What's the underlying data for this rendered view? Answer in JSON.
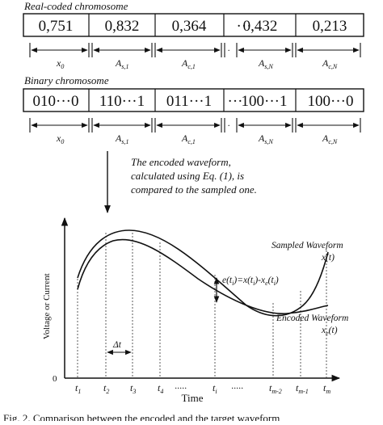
{
  "real_chromosome": {
    "title": "Real-coded chromosome",
    "cells": [
      "0,751",
      "0,832",
      "0,364",
      "···",
      "0,432",
      "0,213"
    ]
  },
  "binary_chromosome": {
    "title": "Binary chromosome",
    "cells": [
      "010···0",
      "110···1",
      "011···1",
      "···",
      "100···1",
      "100···0"
    ]
  },
  "segments": [
    {
      "main": "x",
      "sub": "0"
    },
    {
      "main": "A",
      "sub": "s,1"
    },
    {
      "main": "A",
      "sub": "c,1"
    },
    {
      "main": "A",
      "sub": "s,N"
    },
    {
      "main": "A",
      "sub": "c,N"
    }
  ],
  "note": {
    "line1": "The encoded waveform,",
    "line2": "calculated using Eq. (1), is",
    "line3": "compared to the sampled one."
  },
  "plot": {
    "ylabel": "Voltage or Current",
    "xlabel": "Time",
    "origin": "0",
    "sampled_label": "Sampled Waveform",
    "sampled_symbol": "x(t)",
    "encoded_label": "Encoded Waveform",
    "encoded_symbol": "x",
    "encoded_symbol_sub": "e",
    "encoded_symbol_tail": "(t)",
    "error_label": "e(t",
    "error_label_sub": "i",
    "error_label_mid": ")=x(t",
    "error_label_mid2": ")-x",
    "error_label_sub2": "e",
    "error_label_end": "(t",
    "error_label_end2": ")",
    "delta": "Δt",
    "ticks": [
      {
        "main": "t",
        "sub": "1"
      },
      {
        "main": "t",
        "sub": "2"
      },
      {
        "main": "t",
        "sub": "3"
      },
      {
        "main": "t",
        "sub": "4"
      },
      {
        "main": "·····",
        "sub": ""
      },
      {
        "main": "t",
        "sub": "i"
      },
      {
        "main": "·····",
        "sub": ""
      },
      {
        "main": "t",
        "sub": "m-2"
      },
      {
        "main": "t",
        "sub": "m-1"
      },
      {
        "main": "t",
        "sub": "m"
      }
    ]
  },
  "caption": "Fig. 2. Comparison between the encoded and the target waveform"
}
